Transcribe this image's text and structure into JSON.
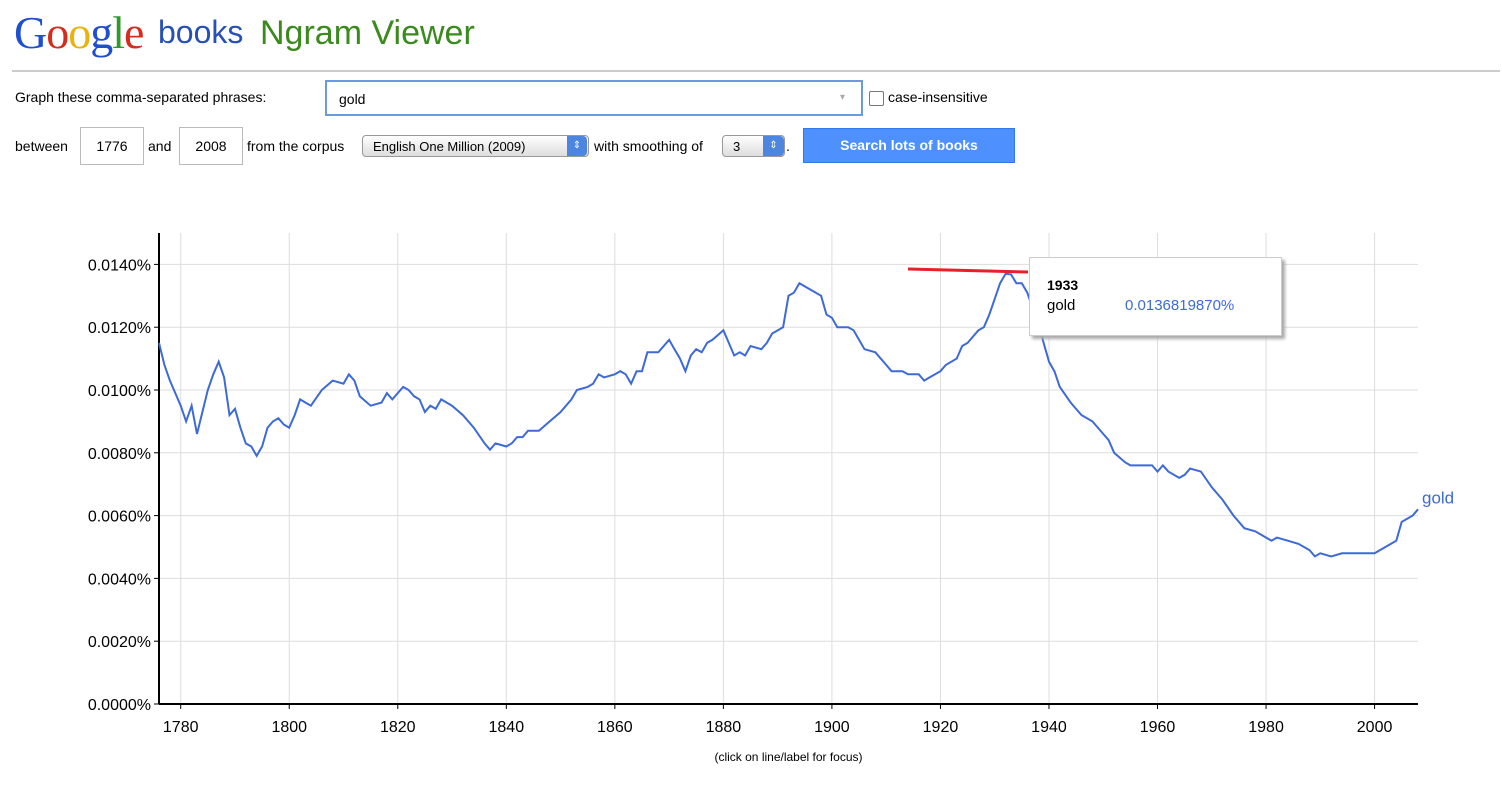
{
  "header": {
    "logo": "Google",
    "product": "books",
    "title": "Ngram Viewer"
  },
  "form": {
    "phrases_label": "Graph these comma-separated phrases:",
    "phrases": "gold",
    "case_label": "case-insensitive",
    "between": "between",
    "start": "1776",
    "and": "and",
    "end": "2008",
    "corpus_label": "from the corpus",
    "corpus": "English One Million (2009)",
    "smoothing_label": "with smoothing of",
    "smoothing": "3",
    "period": ".",
    "button": "Search lots of books"
  },
  "chart_data": {
    "type": "line",
    "x": [
      1776,
      1777,
      1778,
      1779,
      1780,
      1781,
      1782,
      1783,
      1784,
      1785,
      1786,
      1787,
      1788,
      1789,
      1790,
      1791,
      1792,
      1793,
      1794,
      1795,
      1796,
      1797,
      1798,
      1799,
      1800,
      1801,
      1802,
      1803,
      1804,
      1806,
      1808,
      1810,
      1811,
      1812,
      1813,
      1815,
      1817,
      1818,
      1819,
      1821,
      1822,
      1823,
      1824,
      1825,
      1826,
      1827,
      1828,
      1830,
      1832,
      1834,
      1836,
      1837,
      1838,
      1840,
      1841,
      1842,
      1843,
      1844,
      1846,
      1848,
      1850,
      1852,
      1853,
      1855,
      1856,
      1857,
      1858,
      1860,
      1861,
      1862,
      1863,
      1864,
      1865,
      1866,
      1868,
      1870,
      1871,
      1872,
      1873,
      1874,
      1875,
      1876,
      1877,
      1878,
      1880,
      1881,
      1882,
      1883,
      1884,
      1885,
      1887,
      1888,
      1889,
      1891,
      1892,
      1893,
      1894,
      1896,
      1898,
      1899,
      1900,
      1901,
      1903,
      1904,
      1905,
      1906,
      1908,
      1910,
      1911,
      1913,
      1914,
      1916,
      1917,
      1918,
      1920,
      1921,
      1923,
      1924,
      1925,
      1927,
      1928,
      1929,
      1930,
      1931,
      1932,
      1933,
      1934,
      1935,
      1936,
      1937,
      1938,
      1939,
      1940,
      1941,
      1942,
      1944,
      1946,
      1948,
      1950,
      1951,
      1952,
      1954,
      1955,
      1957,
      1959,
      1960,
      1961,
      1962,
      1964,
      1965,
      1966,
      1968,
      1970,
      1972,
      1974,
      1975,
      1976,
      1978,
      1980,
      1981,
      1982,
      1984,
      1986,
      1988,
      1989,
      1990,
      1992,
      1994,
      1996,
      1998,
      2000,
      2002,
      2004,
      2005,
      2007,
      2008
    ],
    "series": [
      {
        "name": "gold",
        "color": "#3d6ad6",
        "values": [
          0.0115,
          0.0108,
          0.0103,
          0.0099,
          0.0095,
          0.009,
          0.0095,
          0.0086,
          0.0093,
          0.01,
          0.0105,
          0.0109,
          0.0104,
          0.0092,
          0.0094,
          0.0088,
          0.0083,
          0.0082,
          0.0079,
          0.0082,
          0.0088,
          0.009,
          0.0091,
          0.0089,
          0.0088,
          0.0092,
          0.0097,
          0.0096,
          0.0095,
          0.01,
          0.0103,
          0.0102,
          0.0105,
          0.0103,
          0.0098,
          0.0095,
          0.0096,
          0.0099,
          0.0097,
          0.0101,
          0.01,
          0.0098,
          0.0097,
          0.0093,
          0.0095,
          0.0094,
          0.0097,
          0.0095,
          0.0092,
          0.0088,
          0.0083,
          0.0081,
          0.0083,
          0.0082,
          0.0083,
          0.0085,
          0.0085,
          0.0087,
          0.0087,
          0.009,
          0.0093,
          0.0097,
          0.01,
          0.0101,
          0.0102,
          0.0105,
          0.0104,
          0.0105,
          0.0106,
          0.0105,
          0.0102,
          0.0106,
          0.0106,
          0.0112,
          0.0112,
          0.0116,
          0.0113,
          0.011,
          0.0106,
          0.0111,
          0.0113,
          0.0112,
          0.0115,
          0.0116,
          0.0119,
          0.0115,
          0.0111,
          0.0112,
          0.0111,
          0.0114,
          0.0113,
          0.0115,
          0.0118,
          0.012,
          0.013,
          0.0131,
          0.0134,
          0.0132,
          0.013,
          0.0124,
          0.0123,
          0.012,
          0.012,
          0.0119,
          0.0116,
          0.0113,
          0.0112,
          0.0108,
          0.0106,
          0.0106,
          0.0105,
          0.0105,
          0.0103,
          0.0104,
          0.0106,
          0.0108,
          0.011,
          0.0114,
          0.0115,
          0.0119,
          0.012,
          0.0124,
          0.0129,
          0.0134,
          0.0137,
          0.013681987,
          0.0134,
          0.0134,
          0.0131,
          0.0126,
          0.0122,
          0.0115,
          0.0109,
          0.0106,
          0.0101,
          0.0096,
          0.0092,
          0.009,
          0.0086,
          0.0084,
          0.008,
          0.0077,
          0.0076,
          0.0076,
          0.0076,
          0.0074,
          0.0076,
          0.0074,
          0.0072,
          0.0073,
          0.0075,
          0.0074,
          0.0069,
          0.0065,
          0.006,
          0.0058,
          0.0056,
          0.0055,
          0.0053,
          0.0052,
          0.0053,
          0.0052,
          0.0051,
          0.0049,
          0.0047,
          0.0048,
          0.0047,
          0.0048,
          0.0048,
          0.0048,
          0.0048,
          0.005,
          0.0052,
          0.0058,
          0.006,
          0.0062
        ]
      }
    ],
    "xlim": [
      1776,
      2008
    ],
    "xticks": [
      1780,
      1800,
      1820,
      1840,
      1860,
      1880,
      1900,
      1920,
      1940,
      1960,
      1980,
      2000
    ],
    "ylim": [
      0,
      0.015
    ],
    "yticks": [
      {
        "value": 0,
        "label": "0.0000%"
      },
      {
        "value": 0.002,
        "label": "0.0020%"
      },
      {
        "value": 0.004,
        "label": "0.0040%"
      },
      {
        "value": 0.006,
        "label": "0.0060%"
      },
      {
        "value": 0.008,
        "label": "0.0080%"
      },
      {
        "value": 0.01,
        "label": "0.0100%"
      },
      {
        "value": 0.012,
        "label": "0.0120%"
      },
      {
        "value": 0.014,
        "label": "0.0140%"
      }
    ],
    "grid": true,
    "tooltip": {
      "x": "1933",
      "name": "gold",
      "value": "0.0136819870%"
    },
    "caption": "(click on line/label for focus)"
  }
}
